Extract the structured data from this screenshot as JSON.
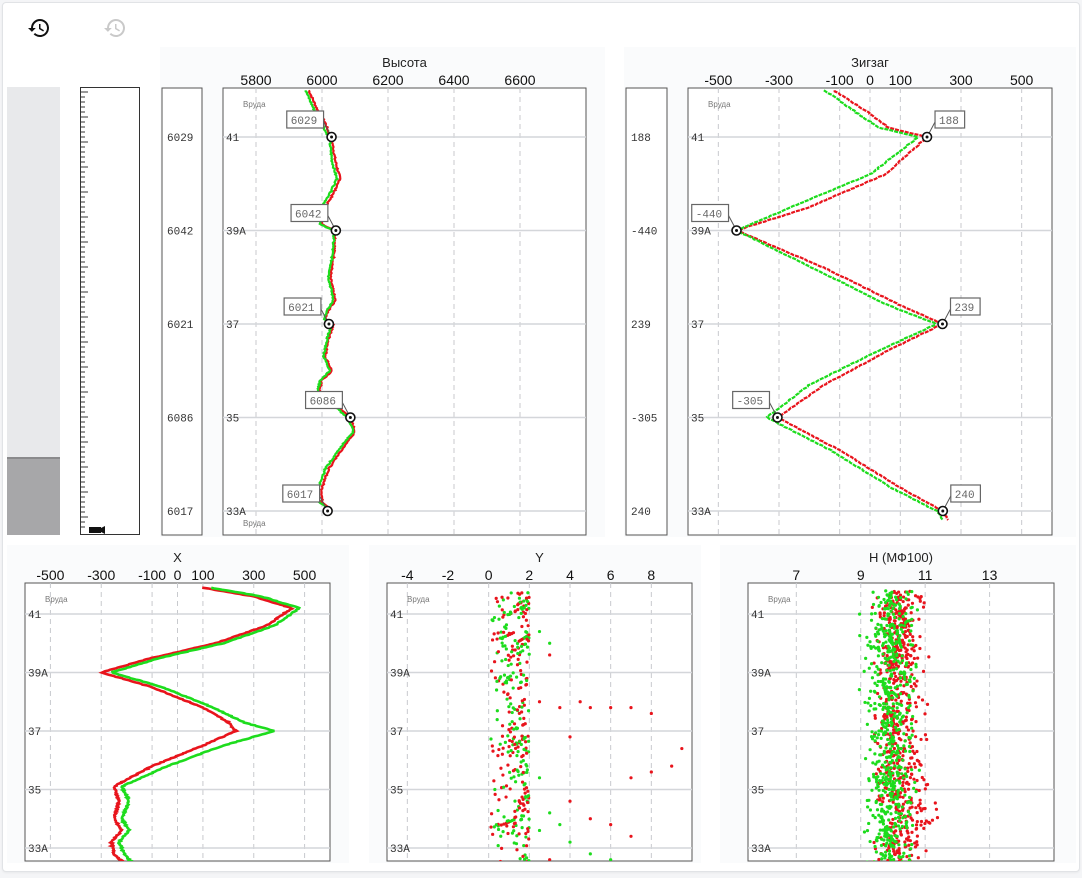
{
  "toolbar": {
    "history_icon": "history-icon",
    "restore_icon": "history-disabled-icon"
  },
  "progress": {
    "fill_fraction": 0.17
  },
  "colors": {
    "series_a": "#e8141c",
    "series_b": "#1ddc1d",
    "grid": "#c8cace",
    "axis": "#666666"
  },
  "chart_data": [
    {
      "id": "height",
      "type": "line",
      "title": "Высота",
      "xlim": [
        5700,
        6800
      ],
      "xticks": [
        5800,
        6000,
        6200,
        6400,
        6600
      ],
      "track_labels": [
        "41",
        "39A",
        "37",
        "35",
        "33A"
      ],
      "side_values": [
        "6029",
        "6042",
        "6021",
        "6086",
        "6017"
      ],
      "callouts": [
        "6029",
        "6042",
        "6021",
        "6086",
        "6017"
      ],
      "callout_values": [
        6029,
        6042,
        6021,
        6086,
        6017
      ],
      "annotations": [
        "Вруда",
        "Вруда"
      ],
      "series": [
        {
          "name": "",
          "x": [
            5960,
            5985,
            6010,
            6020,
            6029,
            6040,
            6055,
            6035,
            6010,
            5990,
            6000,
            6020,
            6042,
            6035,
            6025,
            6040,
            6020,
            6010,
            6035,
            6021,
            6010,
            6030,
            6000,
            5990,
            6010,
            6050,
            6070,
            6086,
            6100,
            6070,
            6020,
            6000,
            6000,
            6017,
            6017
          ],
          "y": [
            -0.5,
            -0.3,
            -0.15,
            -0.05,
            0,
            0.25,
            0.45,
            0.6,
            0.75,
            0.85,
            0.93,
            0.97,
            1,
            1.3,
            1.5,
            1.75,
            1.85,
            1.95,
            2,
            2.15,
            2.35,
            2.5,
            2.6,
            2.75,
            2.85,
            2.9,
            2.95,
            3,
            3.15,
            3.3,
            3.55,
            3.75,
            3.9,
            3.95,
            4
          ]
        },
        {
          "name": "",
          "x": [
            5950,
            5975,
            6000,
            6012,
            6022,
            6030,
            6045,
            6025,
            6000,
            5985,
            5995,
            6015,
            6038,
            6030,
            6020,
            6035,
            6015,
            6005,
            6030,
            6016,
            6005,
            6025,
            5995,
            5985,
            6005,
            6045,
            6060,
            6080,
            6095,
            6060,
            6010,
            5990,
            5990,
            6010,
            6012
          ],
          "y": [
            -0.5,
            -0.3,
            -0.15,
            -0.05,
            0,
            0.25,
            0.45,
            0.6,
            0.75,
            0.85,
            0.93,
            0.97,
            1,
            1.3,
            1.5,
            1.75,
            1.85,
            1.95,
            2,
            2.15,
            2.35,
            2.5,
            2.6,
            2.75,
            2.85,
            2.9,
            2.95,
            3,
            3.15,
            3.3,
            3.55,
            3.75,
            3.9,
            3.95,
            4
          ]
        }
      ]
    },
    {
      "id": "zigzag",
      "type": "line",
      "title": "Зигзаг",
      "xlim": [
        -600,
        600
      ],
      "xticks": [
        -500,
        -300,
        -100,
        0,
        100,
        300,
        500
      ],
      "track_labels": [
        "41",
        "39A",
        "37",
        "35",
        "33A"
      ],
      "side_values": [
        "188",
        "-440",
        "239",
        "-305",
        "240"
      ],
      "callouts": [
        "188",
        "-440",
        "239",
        "-305",
        "240"
      ],
      "callout_values": [
        188,
        -440,
        239,
        -305,
        240
      ],
      "annotations": [
        "Вруда"
      ],
      "series": [
        {
          "name": "",
          "x": [
            -120,
            0,
            60,
            188,
            50,
            -200,
            -440,
            -150,
            100,
            239,
            50,
            -150,
            -305,
            -100,
            100,
            240,
            260
          ],
          "y": [
            -0.5,
            -0.25,
            -0.1,
            0,
            0.4,
            0.75,
            1,
            1.4,
            1.8,
            2,
            2.3,
            2.65,
            3,
            3.35,
            3.75,
            4,
            4.1
          ]
        },
        {
          "name": "",
          "x": [
            -150,
            -40,
            30,
            160,
            0,
            -260,
            -440,
            -190,
            60,
            220,
            20,
            -200,
            -340,
            -130,
            70,
            220,
            240
          ],
          "y": [
            -0.5,
            -0.25,
            -0.1,
            0,
            0.4,
            0.75,
            1,
            1.4,
            1.8,
            2,
            2.3,
            2.65,
            3,
            3.35,
            3.75,
            4,
            4.1
          ]
        }
      ]
    },
    {
      "id": "x",
      "type": "line",
      "title": "X",
      "xlim": [
        -600,
        600
      ],
      "xticks": [
        -500,
        -300,
        -100,
        0,
        100,
        300,
        500
      ],
      "track_labels": [
        "41",
        "39A",
        "37",
        "35",
        "33A"
      ],
      "annotations": [
        "Вруда"
      ],
      "series": [
        {
          "name": "",
          "x": [
            100,
            300,
            450,
            350,
            150,
            -100,
            -300,
            -100,
            100,
            200,
            230,
            100,
            -100,
            -250,
            -230,
            -250,
            -220,
            -260,
            -250,
            -200
          ],
          "y": [
            -0.45,
            -0.3,
            -0.1,
            0.2,
            0.5,
            0.75,
            1,
            1.25,
            1.6,
            1.85,
            2,
            2.25,
            2.6,
            2.95,
            3.2,
            3.5,
            3.7,
            3.9,
            4.1,
            4.3
          ]
        },
        {
          "name": "",
          "x": [
            130,
            330,
            480,
            380,
            180,
            -70,
            -260,
            -60,
            140,
            260,
            380,
            180,
            -40,
            -220,
            -190,
            -220,
            -190,
            -230,
            -210,
            -170
          ],
          "y": [
            -0.45,
            -0.3,
            -0.1,
            0.2,
            0.5,
            0.75,
            1,
            1.25,
            1.6,
            1.85,
            2,
            2.25,
            2.6,
            2.95,
            3.2,
            3.5,
            3.7,
            3.9,
            4.1,
            4.3
          ]
        }
      ]
    },
    {
      "id": "y",
      "type": "scatter",
      "title": "Y",
      "xlim": [
        -5,
        10
      ],
      "xticks": [
        -4,
        -2,
        0,
        2,
        4,
        6,
        8
      ],
      "track_labels": [
        "41",
        "39A",
        "37",
        "35",
        "33A"
      ],
      "annotations": [
        "Вруда"
      ],
      "series": [
        {
          "name": "",
          "core_x": [
            0,
            2
          ],
          "outliers": [
            [
              2.5,
              1.5
            ],
            [
              3,
              0.7
            ],
            [
              3.5,
              1.6
            ],
            [
              4,
              2.1
            ],
            [
              4.5,
              1.5
            ],
            [
              5,
              1.6
            ],
            [
              6,
              1.6
            ],
            [
              7,
              1.6
            ],
            [
              8,
              1.7
            ],
            [
              9.5,
              2.3
            ],
            [
              9,
              2.6
            ],
            [
              8,
              2.7
            ],
            [
              7,
              2.8
            ],
            [
              4,
              3.2
            ],
            [
              5,
              3.5
            ],
            [
              6,
              3.6
            ],
            [
              7,
              3.8
            ],
            [
              3,
              4.2
            ],
            [
              8,
              4.3
            ],
            [
              9,
              4.3
            ]
          ]
        },
        {
          "name": "",
          "core_x": [
            0,
            2
          ],
          "outliers": [
            [
              2.5,
              0.3
            ],
            [
              3,
              0.5
            ],
            [
              2.5,
              2.8
            ],
            [
              3,
              3.4
            ],
            [
              3.5,
              3.6
            ],
            [
              2.5,
              3.7
            ],
            [
              4,
              3.9
            ],
            [
              5,
              4.1
            ],
            [
              6,
              4.2
            ]
          ]
        }
      ]
    },
    {
      "id": "h",
      "type": "scatter",
      "title": "H (МФ100)",
      "xlim": [
        5.5,
        15
      ],
      "xticks": [
        7,
        9,
        11,
        13
      ],
      "track_labels": [
        "41",
        "39A",
        "37",
        "35",
        "33A"
      ],
      "annotations": [
        "Вруда"
      ],
      "series": [
        {
          "name": "",
          "center": 10.2,
          "spread": 0.7,
          "bulge": [
            [
              3.45,
              11.2
            ]
          ]
        },
        {
          "name": "",
          "center": 9.9,
          "spread": 0.7,
          "bulge": []
        }
      ]
    }
  ]
}
